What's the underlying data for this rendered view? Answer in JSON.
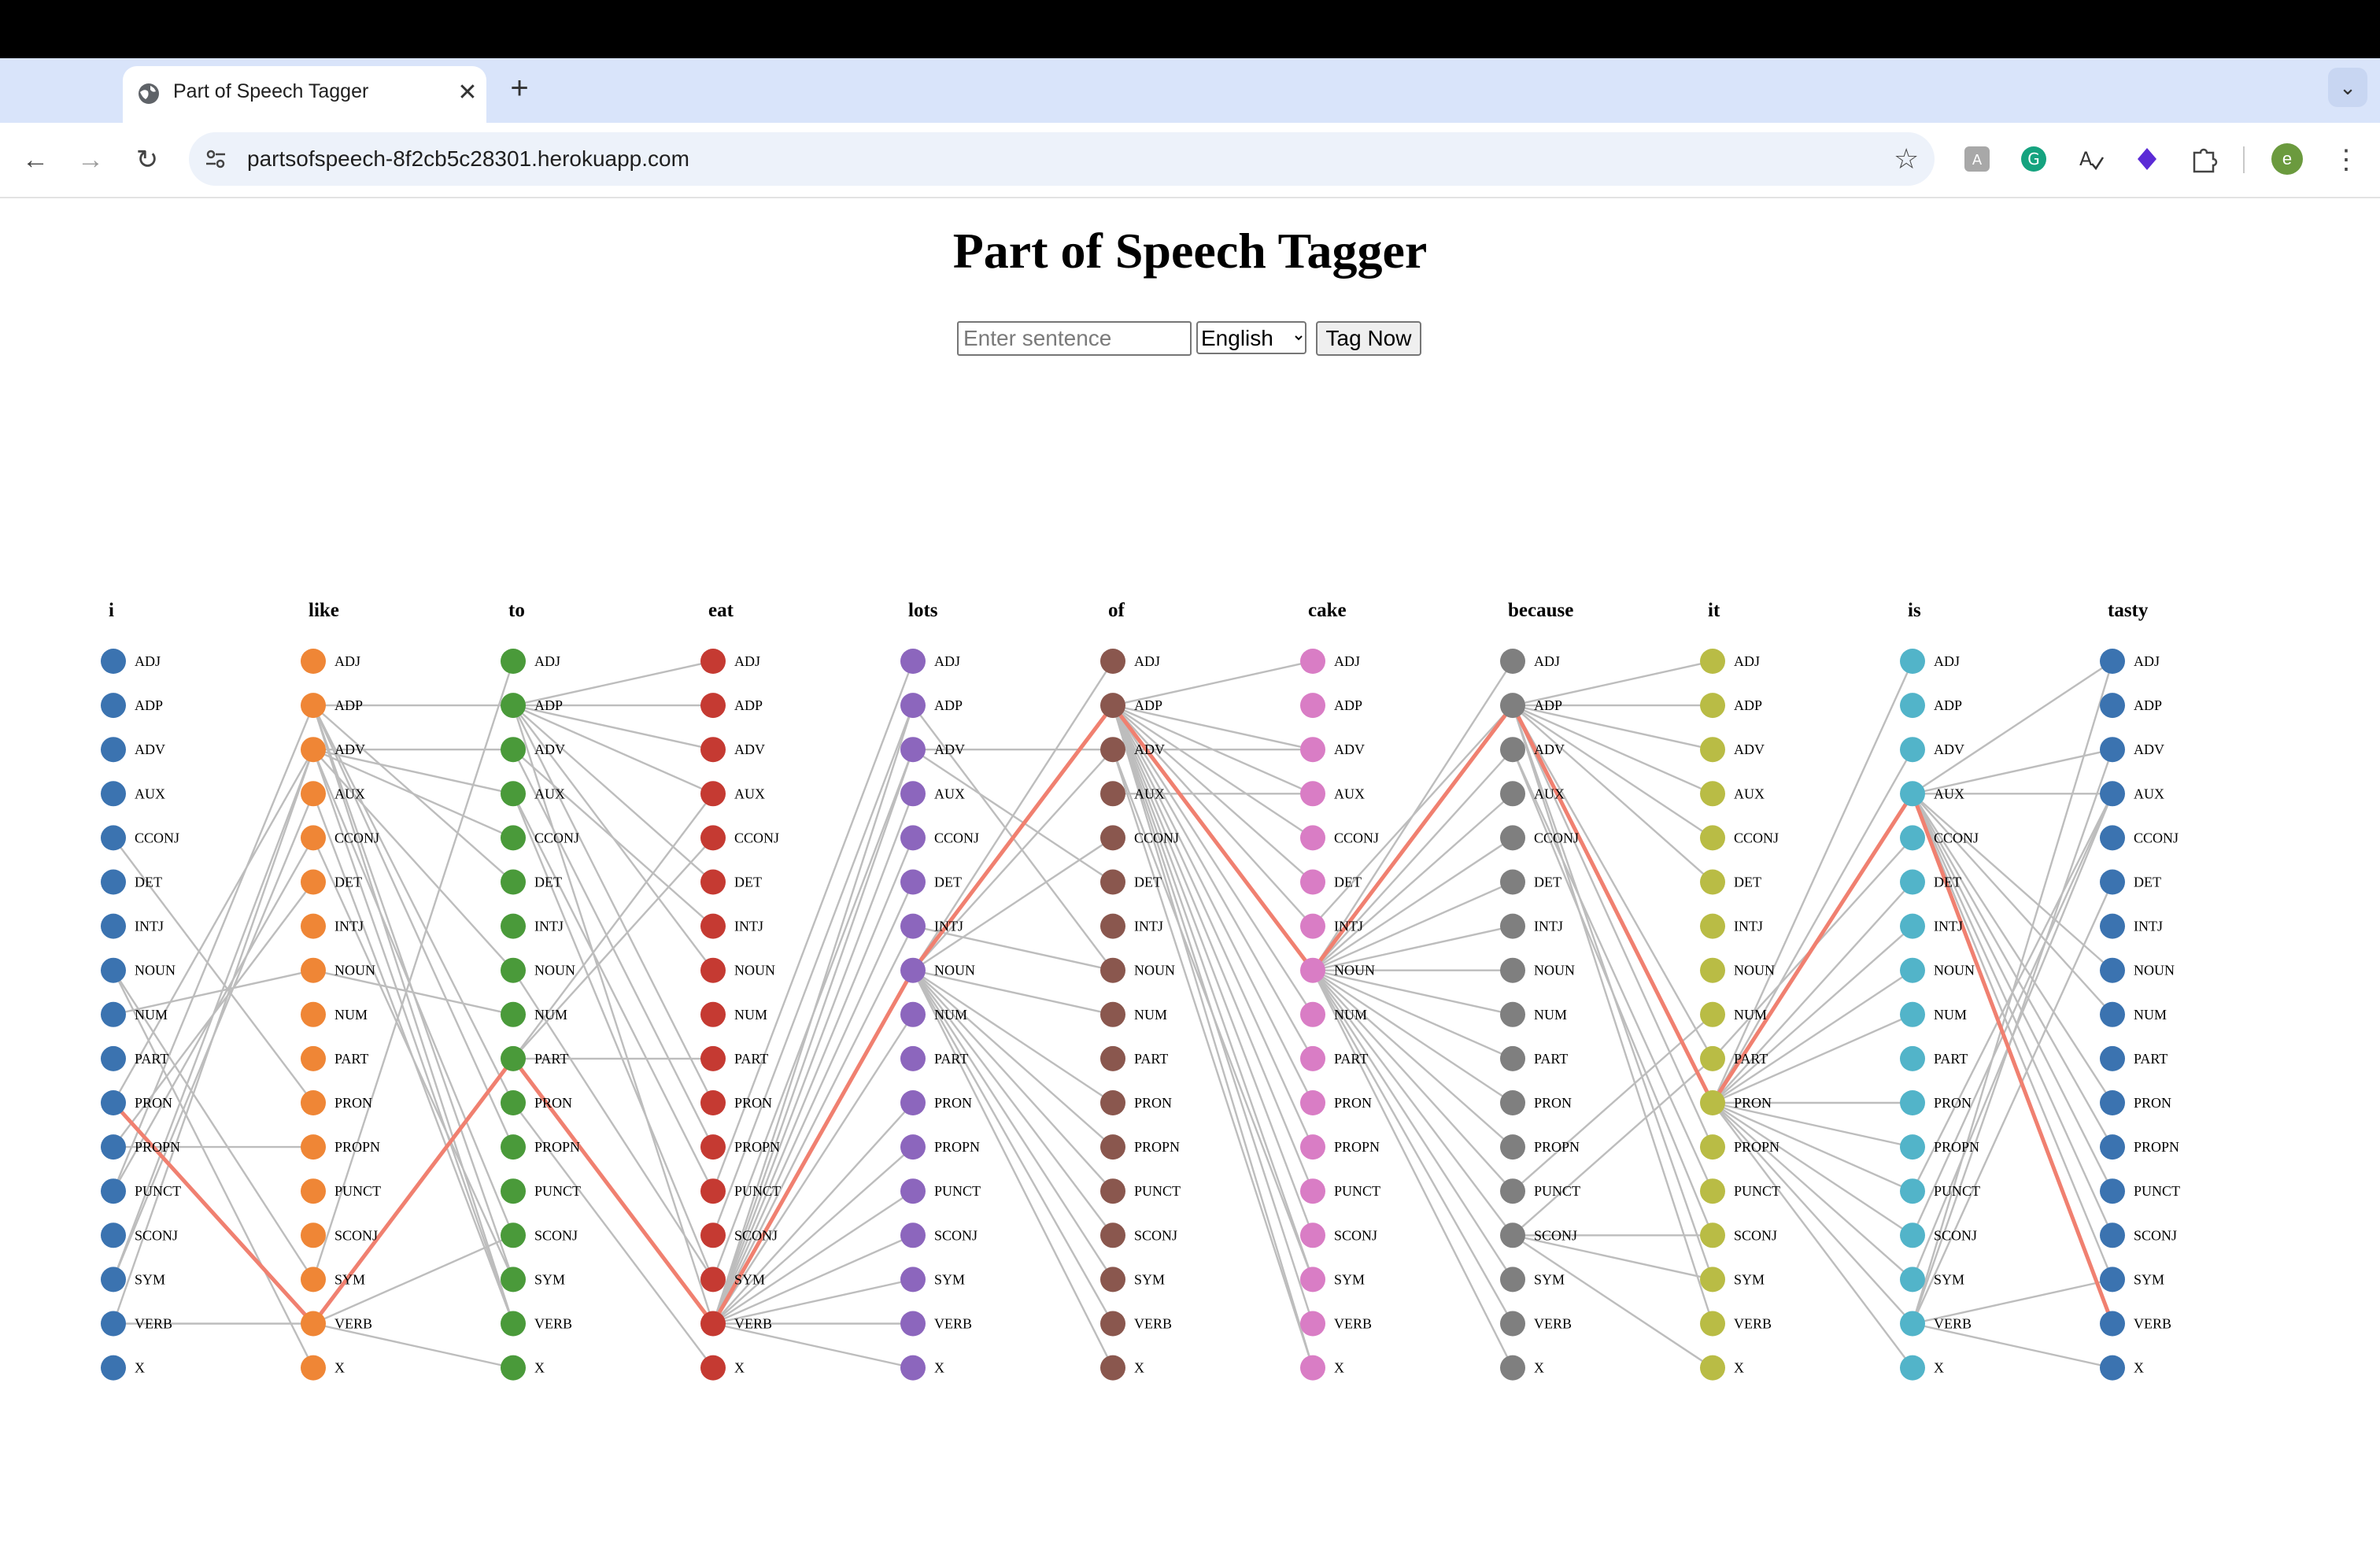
{
  "browser": {
    "tab_title": "Part of Speech Tagger",
    "url": "partsofspeech-8f2cb5c28301.herokuapp.com",
    "avatar_initial": "e"
  },
  "page": {
    "title": "Part of Speech Tagger",
    "input_placeholder": "Enter sentence",
    "input_value": "",
    "language_selected": "English",
    "button_label": "Tag Now"
  },
  "tagger": {
    "tags": [
      "ADJ",
      "ADP",
      "ADV",
      "AUX",
      "CCONJ",
      "DET",
      "INTJ",
      "NOUN",
      "NUM",
      "PART",
      "PRON",
      "PROPN",
      "PUNCT",
      "SCONJ",
      "SYM",
      "VERB",
      "X"
    ],
    "words": [
      {
        "word": "i",
        "color": "#3b73b0"
      },
      {
        "word": "like",
        "color": "#ef8636"
      },
      {
        "word": "to",
        "color": "#4a9a3a"
      },
      {
        "word": "eat",
        "color": "#c53a32"
      },
      {
        "word": "lots",
        "color": "#8c66bd"
      },
      {
        "word": "of",
        "color": "#8a574e"
      },
      {
        "word": "cake",
        "color": "#d97dc5"
      },
      {
        "word": "because",
        "color": "#7f7f7f"
      },
      {
        "word": "it",
        "color": "#b9bc45"
      },
      {
        "word": "is",
        "color": "#52b4c9"
      },
      {
        "word": "tasty",
        "color": "#3b73b0"
      }
    ],
    "best_path": [
      "PRON",
      "VERB",
      "PART",
      "VERB",
      "NOUN",
      "ADP",
      "NOUN",
      "ADP",
      "PRON",
      "AUX",
      "VERB"
    ],
    "best_path_color": "#f08070",
    "edge_color": "#bdbdbd",
    "transitions": [
      [
        [
          "PUNCT",
          "ADP"
        ],
        [
          "NOUN",
          "SYM"
        ],
        [
          "NOUN",
          "X"
        ],
        [
          "PRON",
          "ADV"
        ],
        [
          "PROPN",
          "PROPN"
        ],
        [
          "PROPN",
          "DET"
        ],
        [
          "PUNCT",
          "CCONJ"
        ],
        [
          "SYM",
          "ADV"
        ],
        [
          "SYM",
          "AUX"
        ],
        [
          "VERB",
          "ADV"
        ],
        [
          "VERB",
          "VERB"
        ],
        [
          "CCONJ",
          "PRON"
        ],
        [
          "NUM",
          "NOUN"
        ]
      ],
      [
        [
          "ADP",
          "SYM"
        ],
        [
          "ADP",
          "VERB"
        ],
        [
          "ADP",
          "PRON"
        ],
        [
          "ADP",
          "PROPN"
        ],
        [
          "ADP",
          "ADP"
        ],
        [
          "ADP",
          "DET"
        ],
        [
          "ADV",
          "ADV"
        ],
        [
          "ADV",
          "AUX"
        ],
        [
          "ADV",
          "SCONJ"
        ],
        [
          "ADV",
          "VERB"
        ],
        [
          "ADV",
          "CCONJ"
        ],
        [
          "ADV",
          "NOUN"
        ],
        [
          "VERB",
          "SCONJ"
        ],
        [
          "VERB",
          "X"
        ],
        [
          "SYM",
          "ADJ"
        ],
        [
          "CCONJ",
          "SYM"
        ],
        [
          "AUX",
          "VERB"
        ],
        [
          "NOUN",
          "NUM"
        ]
      ],
      [
        [
          "ADP",
          "ADJ"
        ],
        [
          "ADP",
          "ADP"
        ],
        [
          "ADP",
          "DET"
        ],
        [
          "ADP",
          "PRON"
        ],
        [
          "ADP",
          "NOUN"
        ],
        [
          "ADP",
          "ADV"
        ],
        [
          "ADP",
          "AUX"
        ],
        [
          "ADP",
          "VERB"
        ],
        [
          "ADV",
          "INTJ"
        ],
        [
          "ADV",
          "PROPN"
        ],
        [
          "PART",
          "PART"
        ],
        [
          "PART",
          "AUX"
        ],
        [
          "PART",
          "CCONJ"
        ],
        [
          "AUX",
          "PUNCT"
        ],
        [
          "AUX",
          "SYM"
        ],
        [
          "NOUN",
          "SYM"
        ],
        [
          "PRON",
          "X"
        ]
      ],
      [
        [
          "VERB",
          "PROPN"
        ],
        [
          "VERB",
          "NOUN"
        ],
        [
          "VERB",
          "PRON"
        ],
        [
          "VERB",
          "ADV"
        ],
        [
          "VERB",
          "ADP"
        ],
        [
          "VERB",
          "AUX"
        ],
        [
          "VERB",
          "CCONJ"
        ],
        [
          "VERB",
          "DET"
        ],
        [
          "VERB",
          "INTJ"
        ],
        [
          "VERB",
          "SCONJ"
        ],
        [
          "VERB",
          "SYM"
        ],
        [
          "VERB",
          "VERB"
        ],
        [
          "VERB",
          "X"
        ],
        [
          "VERB",
          "PUNCT"
        ],
        [
          "VERB",
          "NUM"
        ],
        [
          "PUNCT",
          "ADJ"
        ],
        [
          "SCONJ",
          "ADP"
        ],
        [
          "SYM",
          "ADV"
        ]
      ],
      [
        [
          "NOUN",
          "ADP"
        ],
        [
          "NOUN",
          "SYM"
        ],
        [
          "NOUN",
          "X"
        ],
        [
          "NOUN",
          "NUM"
        ],
        [
          "NOUN",
          "PRON"
        ],
        [
          "NOUN",
          "PROPN"
        ],
        [
          "NOUN",
          "PUNCT"
        ],
        [
          "NOUN",
          "SCONJ"
        ],
        [
          "NOUN",
          "VERB"
        ],
        [
          "NOUN",
          "ADJ"
        ],
        [
          "NOUN",
          "ADV"
        ],
        [
          "NOUN",
          "CCONJ"
        ],
        [
          "ADV",
          "ADV"
        ],
        [
          "ADV",
          "DET"
        ],
        [
          "ADP",
          "NOUN"
        ],
        [
          "INTJ",
          "NOUN"
        ]
      ],
      [
        [
          "ADP",
          "ADJ"
        ],
        [
          "ADP",
          "ADV"
        ],
        [
          "ADP",
          "AUX"
        ],
        [
          "ADP",
          "CCONJ"
        ],
        [
          "ADP",
          "DET"
        ],
        [
          "ADP",
          "INTJ"
        ],
        [
          "ADP",
          "NOUN"
        ],
        [
          "ADP",
          "NUM"
        ],
        [
          "ADP",
          "PART"
        ],
        [
          "ADP",
          "PRON"
        ],
        [
          "ADP",
          "PROPN"
        ],
        [
          "ADP",
          "PUNCT"
        ],
        [
          "ADP",
          "SCONJ"
        ],
        [
          "ADP",
          "SYM"
        ],
        [
          "ADP",
          "VERB"
        ],
        [
          "ADP",
          "X"
        ],
        [
          "ADV",
          "ADV"
        ],
        [
          "ADV",
          "SYM"
        ],
        [
          "ADV",
          "X"
        ],
        [
          "AUX",
          "AUX"
        ]
      ],
      [
        [
          "NOUN",
          "ADJ"
        ],
        [
          "NOUN",
          "ADV"
        ],
        [
          "NOUN",
          "AUX"
        ],
        [
          "NOUN",
          "CCONJ"
        ],
        [
          "NOUN",
          "DET"
        ],
        [
          "NOUN",
          "INTJ"
        ],
        [
          "NOUN",
          "NOUN"
        ],
        [
          "NOUN",
          "NUM"
        ],
        [
          "NOUN",
          "PART"
        ],
        [
          "NOUN",
          "PRON"
        ],
        [
          "NOUN",
          "PROPN"
        ],
        [
          "NOUN",
          "PUNCT"
        ],
        [
          "NOUN",
          "SCONJ"
        ],
        [
          "NOUN",
          "SYM"
        ],
        [
          "NOUN",
          "VERB"
        ],
        [
          "NOUN",
          "X"
        ],
        [
          "INTJ",
          "ADP"
        ]
      ],
      [
        [
          "ADP",
          "ADJ"
        ],
        [
          "ADP",
          "ADP"
        ],
        [
          "ADP",
          "ADV"
        ],
        [
          "ADP",
          "AUX"
        ],
        [
          "ADP",
          "CCONJ"
        ],
        [
          "ADP",
          "DET"
        ],
        [
          "ADP",
          "PART"
        ],
        [
          "ADP",
          "PROPN"
        ],
        [
          "ADP",
          "SYM"
        ],
        [
          "ADP",
          "VERB"
        ],
        [
          "ADV",
          "PUNCT"
        ],
        [
          "ADV",
          "SCONJ"
        ],
        [
          "SCONJ",
          "SCONJ"
        ],
        [
          "SCONJ",
          "SYM"
        ],
        [
          "SCONJ",
          "X"
        ],
        [
          "SCONJ",
          "PART"
        ],
        [
          "PUNCT",
          "NUM"
        ]
      ],
      [
        [
          "PRON",
          "ADJ"
        ],
        [
          "PRON",
          "AUX"
        ],
        [
          "PRON",
          "ADV"
        ],
        [
          "PRON",
          "DET"
        ],
        [
          "PRON",
          "INTJ"
        ],
        [
          "PRON",
          "NOUN"
        ],
        [
          "PRON",
          "NUM"
        ],
        [
          "PRON",
          "PRON"
        ],
        [
          "PRON",
          "PROPN"
        ],
        [
          "PRON",
          "PUNCT"
        ],
        [
          "PRON",
          "SCONJ"
        ],
        [
          "PRON",
          "SYM"
        ],
        [
          "PRON",
          "VERB"
        ],
        [
          "PRON",
          "X"
        ],
        [
          "PART",
          "CCONJ"
        ]
      ],
      [
        [
          "AUX",
          "ADJ"
        ],
        [
          "AUX",
          "ADV"
        ],
        [
          "AUX",
          "AUX"
        ],
        [
          "AUX",
          "NOUN"
        ],
        [
          "AUX",
          "PRON"
        ],
        [
          "AUX",
          "PROPN"
        ],
        [
          "AUX",
          "PUNCT"
        ],
        [
          "AUX",
          "SCONJ"
        ],
        [
          "AUX",
          "SYM"
        ],
        [
          "VERB",
          "ADJ"
        ],
        [
          "VERB",
          "ADV"
        ],
        [
          "VERB",
          "DET"
        ],
        [
          "VERB",
          "SYM"
        ],
        [
          "VERB",
          "X"
        ],
        [
          "PUNCT",
          "AUX"
        ],
        [
          "SCONJ",
          "AUX"
        ],
        [
          "SYM",
          "AUX"
        ],
        [
          "AUX",
          "NUM"
        ]
      ]
    ]
  }
}
